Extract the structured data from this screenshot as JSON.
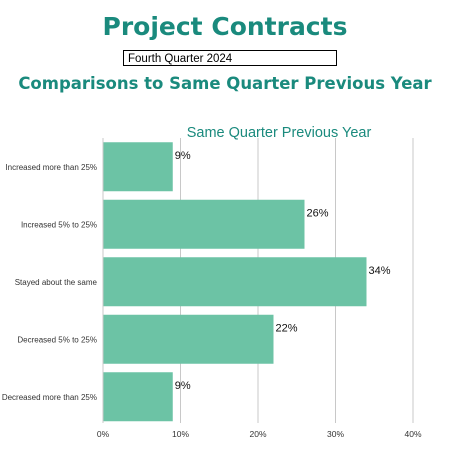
{
  "header": {
    "title": "Project Contracts",
    "period": "Fourth Quarter 2024",
    "subtitle": "Comparisons to Same Quarter Previous Year"
  },
  "colors": {
    "accent": "#1a8a7d",
    "bar": "#6cc3a5",
    "grid": "#c8c8c8"
  },
  "chart_data": {
    "type": "bar",
    "orientation": "horizontal",
    "title": "Same Quarter Previous Year",
    "categories": [
      "Increased more than 25%",
      "Increased 5% to 25%",
      "Stayed about the same",
      "Decreased 5% to 25%",
      "Decreased more than 25%"
    ],
    "values": [
      9,
      26,
      34,
      22,
      9
    ],
    "data_labels": [
      "9%",
      "26%",
      "34%",
      "22%",
      "9%"
    ],
    "xlim": [
      0,
      40
    ],
    "xticks": [
      0,
      10,
      20,
      30,
      40
    ],
    "xtick_labels": [
      "0%",
      "10%",
      "20%",
      "30%",
      "40%"
    ],
    "grid": true,
    "legend": "none"
  }
}
